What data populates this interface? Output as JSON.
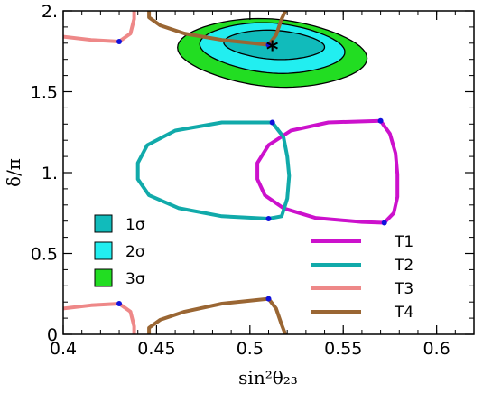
{
  "chart_data": {
    "type": "line",
    "xlabel": "sin²θ₂₃",
    "ylabel": "δ/π",
    "xlim": [
      0.4,
      0.62
    ],
    "ylim": [
      0,
      2
    ],
    "xticks": [
      "0.4",
      "0.45",
      "0.5",
      "0.55",
      "0.6"
    ],
    "xtick_values": [
      0.4,
      0.45,
      0.5,
      0.55,
      0.6
    ],
    "yticks": [
      "0",
      "0.5",
      "1.",
      "1.5",
      "2."
    ],
    "ytick_values": [
      0,
      0.5,
      1.0,
      1.5,
      2.0
    ],
    "grid": false,
    "best_fit": {
      "x": 0.512,
      "y": 1.78,
      "marker": "*"
    },
    "regions": [
      {
        "name": "3σ",
        "color": "#22dd22",
        "cx": 0.512,
        "cy": 1.74,
        "rx": 0.047,
        "ry": 0.21,
        "tilt": 0.45
      },
      {
        "name": "2σ",
        "color": "#22eef0",
        "cx": 0.512,
        "cy": 1.77,
        "rx": 0.036,
        "ry": 0.155,
        "tilt": 0.45
      },
      {
        "name": "1σ",
        "color": "#11bbbb",
        "cx": 0.513,
        "cy": 1.79,
        "rx": 0.025,
        "ry": 0.09,
        "tilt": 0.45
      }
    ],
    "region_legend": {
      "items": [
        "1σ",
        "2σ",
        "3σ"
      ],
      "position": "lower-left"
    },
    "series": [
      {
        "name": "T1",
        "color": "#cc11cc",
        "segments": [
          [
            [
              0.57,
              1.32
            ],
            [
              0.542,
              1.31
            ],
            [
              0.522,
              1.26
            ],
            [
              0.51,
              1.17
            ],
            [
              0.504,
              1.06
            ],
            [
              0.504,
              0.96
            ],
            [
              0.508,
              0.86
            ],
            [
              0.518,
              0.78
            ],
            [
              0.535,
              0.72
            ],
            [
              0.56,
              0.695
            ],
            [
              0.572,
              0.69
            ],
            [
              0.577,
              0.75
            ],
            [
              0.579,
              0.85
            ],
            [
              0.579,
              0.99
            ],
            [
              0.578,
              1.12
            ],
            [
              0.575,
              1.24
            ],
            [
              0.57,
              1.32
            ]
          ]
        ],
        "blue_marks": [
          [
            0.57,
            1.32
          ],
          [
            0.572,
            0.69
          ]
        ]
      },
      {
        "name": "T2",
        "color": "#11aaaa",
        "segments": [
          [
            [
              0.512,
              1.31
            ],
            [
              0.485,
              1.31
            ],
            [
              0.46,
              1.26
            ],
            [
              0.445,
              1.17
            ],
            [
              0.44,
              1.06
            ],
            [
              0.44,
              0.96
            ],
            [
              0.446,
              0.86
            ],
            [
              0.462,
              0.78
            ],
            [
              0.485,
              0.73
            ],
            [
              0.51,
              0.715
            ],
            [
              0.517,
              0.73
            ],
            [
              0.52,
              0.84
            ],
            [
              0.521,
              0.98
            ],
            [
              0.52,
              1.1
            ],
            [
              0.518,
              1.22
            ],
            [
              0.512,
              1.31
            ]
          ]
        ],
        "blue_marks": [
          [
            0.512,
            1.31
          ],
          [
            0.51,
            0.715
          ]
        ]
      },
      {
        "name": "T3",
        "color": "#ee8888",
        "segments": [
          [
            [
              0.4,
              1.84
            ],
            [
              0.415,
              1.82
            ],
            [
              0.43,
              1.81
            ],
            [
              0.436,
              1.86
            ],
            [
              0.438,
              1.95
            ],
            [
              0.438,
              2.0
            ]
          ],
          [
            [
              0.4,
              0.16
            ],
            [
              0.415,
              0.18
            ],
            [
              0.43,
              0.19
            ],
            [
              0.436,
              0.14
            ],
            [
              0.438,
              0.05
            ],
            [
              0.438,
              0.0
            ]
          ]
        ],
        "blue_marks": [
          [
            0.43,
            1.81
          ],
          [
            0.43,
            0.19
          ]
        ]
      },
      {
        "name": "T4",
        "color": "#9a6633",
        "segments": [
          [
            [
              0.446,
              2.0
            ],
            [
              0.446,
              1.96
            ],
            [
              0.452,
              1.91
            ],
            [
              0.465,
              1.86
            ],
            [
              0.485,
              1.82
            ],
            [
              0.51,
              1.79
            ],
            [
              0.514,
              1.85
            ],
            [
              0.517,
              1.95
            ],
            [
              0.519,
              2.0
            ]
          ],
          [
            [
              0.446,
              0.0
            ],
            [
              0.446,
              0.04
            ],
            [
              0.452,
              0.09
            ],
            [
              0.465,
              0.14
            ],
            [
              0.485,
              0.19
            ],
            [
              0.51,
              0.22
            ],
            [
              0.514,
              0.16
            ],
            [
              0.517,
              0.06
            ],
            [
              0.519,
              0.0
            ]
          ]
        ],
        "blue_marks": [
          [
            0.51,
            1.79
          ],
          [
            0.51,
            0.22
          ]
        ]
      }
    ],
    "legend": {
      "items": [
        "T1",
        "T2",
        "T3",
        "T4"
      ],
      "position": "lower-right"
    }
  }
}
